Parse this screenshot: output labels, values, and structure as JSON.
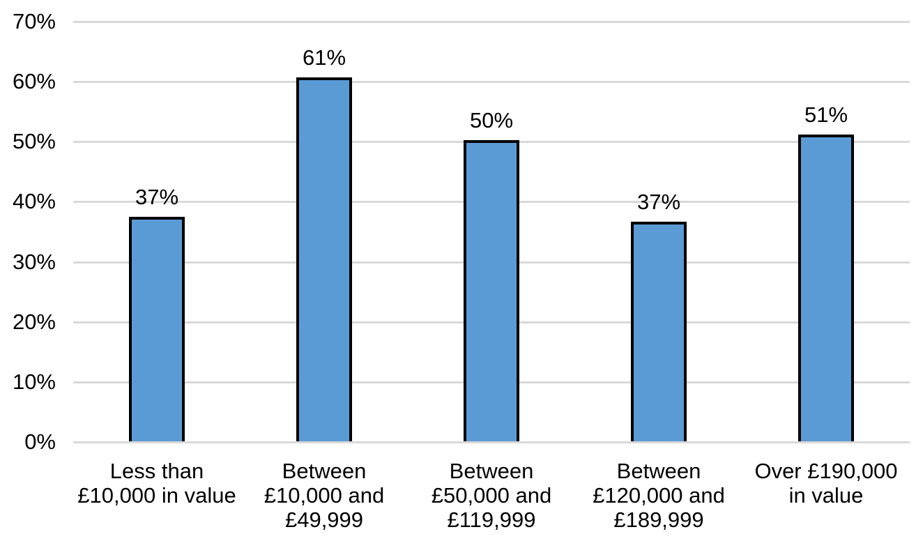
{
  "chart_data": {
    "type": "bar",
    "title": "",
    "xlabel": "",
    "ylabel": "",
    "categories": [
      "Less than\n£10,000 in value",
      "Between\n£10,000 and\n£49,999",
      "Between\n£50,000 and\n£119,999",
      "Between\n£120,000 and\n£189,999",
      "Over £190,000\nin value"
    ],
    "values": [
      37,
      61,
      50,
      37,
      51
    ],
    "values_precise": [
      37.4,
      60.6,
      50.1,
      36.6,
      51.1
    ],
    "data_labels": [
      "37%",
      "61%",
      "50%",
      "37%",
      "51%"
    ],
    "ylim": [
      0,
      70
    ],
    "ytick_step": 10,
    "ytick_labels": [
      "0%",
      "10%",
      "20%",
      "30%",
      "40%",
      "50%",
      "60%",
      "70%"
    ],
    "grid": true,
    "legend": false,
    "colors": {
      "bar_fill": "#5B9BD5",
      "bar_border": "#000000",
      "gridline": "#D9D9D9",
      "axis_line": "#D9D9D9",
      "text": "#000000",
      "background": "#FFFFFF"
    }
  }
}
